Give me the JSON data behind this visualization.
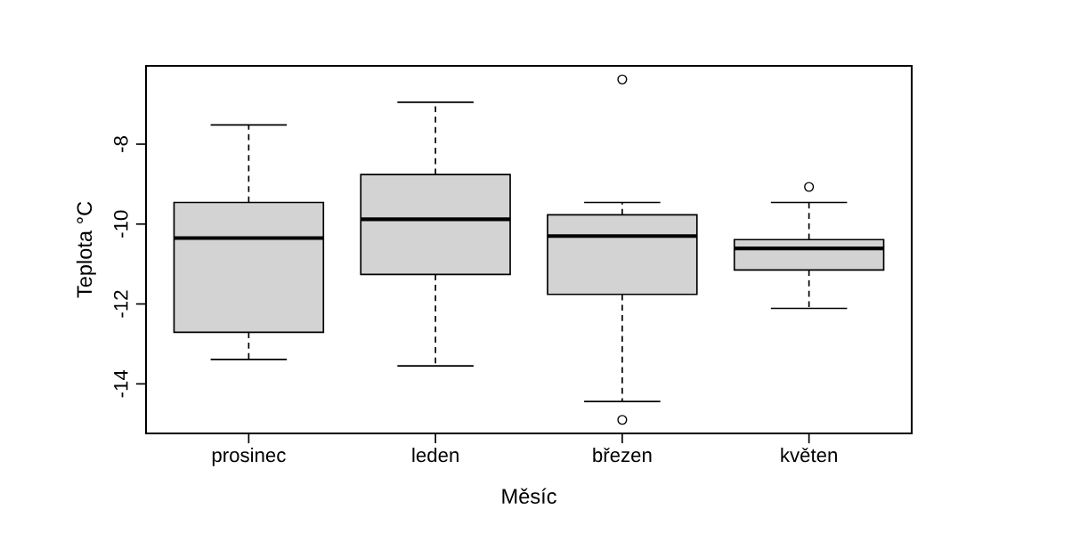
{
  "chart_data": {
    "type": "box",
    "xlabel": "Měsíc",
    "ylabel": "Teplota °C",
    "categories": [
      "prosinec",
      "leden",
      "březen",
      "květen"
    ],
    "boxes": [
      {
        "low": -13.39,
        "q1": -12.71,
        "median": -10.35,
        "q3": -9.46,
        "high": -7.52
      },
      {
        "low": -13.55,
        "q1": -11.26,
        "median": -9.88,
        "q3": -8.76,
        "high": -6.95
      },
      {
        "low": -14.44,
        "q1": -11.76,
        "median": -10.3,
        "q3": -9.77,
        "high": -9.46,
        "outliers": [
          -6.38,
          -14.9
        ]
      },
      {
        "low": -12.11,
        "q1": -11.15,
        "median": -10.61,
        "q3": -10.39,
        "high": -9.46,
        "outliers": [
          -9.07
        ]
      }
    ],
    "color": "#d3d3d3",
    "ylim": [
      -15.24,
      -6.04
    ],
    "yticks": [
      -8,
      -10,
      -12,
      -14
    ],
    "grid": false
  }
}
